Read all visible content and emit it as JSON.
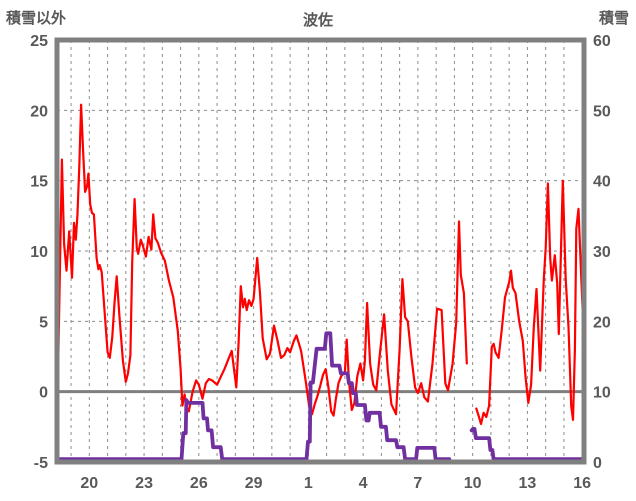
{
  "header": {
    "left_axis_title": "積雪以外",
    "chart_title": "波佐",
    "right_axis_title": "積雪"
  },
  "colors": {
    "temperature_line": "#FF0000",
    "snow_line": "#7030A0",
    "frame": "#808080",
    "grid": "#8C8C8C",
    "zero_line": "#7F7F7F",
    "text": "#595959",
    "background": "#FFFFFF"
  },
  "chart_data": {
    "type": "line",
    "title": "波佐",
    "y_axis_left": {
      "label": "積雪以外",
      "min": -5,
      "max": 25,
      "ticks": [
        25,
        20,
        15,
        10,
        5,
        0,
        -5
      ],
      "dashed_grid_values": [
        20,
        15,
        10,
        5
      ],
      "zero_line_value": 0
    },
    "y_axis_right": {
      "label": "積雪",
      "min": 0,
      "max": 60,
      "ticks": [
        60,
        50,
        40,
        30,
        20,
        10,
        0
      ]
    },
    "x_axis": {
      "domain": [
        -0.77,
        28.1
      ],
      "grid_day_first": 0,
      "grid_day_last": 28,
      "tick_days": [
        1,
        4,
        7,
        10,
        13,
        16,
        19,
        22,
        25,
        28
      ],
      "tick_labels": [
        "20",
        "23",
        "26",
        "29",
        "1",
        "4",
        "7",
        "10",
        "13",
        "16"
      ]
    },
    "grid": true,
    "legend": "none",
    "series": [
      {
        "name": "temperature-red",
        "axis": "left",
        "color": "#FF0000",
        "width": 2.2,
        "points": [
          [
            -0.77,
            2.0
          ],
          [
            -0.7,
            2.3
          ],
          [
            -0.5,
            16.5
          ],
          [
            -0.38,
            10.5
          ],
          [
            -0.25,
            8.6
          ],
          [
            -0.1,
            11.4
          ],
          [
            0.05,
            8.1
          ],
          [
            0.16,
            12.0
          ],
          [
            0.26,
            10.8
          ],
          [
            0.35,
            12.5
          ],
          [
            0.45,
            16.0
          ],
          [
            0.55,
            20.4
          ],
          [
            0.67,
            16.8
          ],
          [
            0.77,
            14.2
          ],
          [
            0.88,
            14.6
          ],
          [
            0.95,
            15.5
          ],
          [
            1.05,
            13.3
          ],
          [
            1.15,
            12.7
          ],
          [
            1.25,
            12.6
          ],
          [
            1.4,
            9.5
          ],
          [
            1.5,
            8.7
          ],
          [
            1.57,
            9.0
          ],
          [
            1.68,
            8.5
          ],
          [
            1.85,
            5.5
          ],
          [
            2.0,
            2.8
          ],
          [
            2.12,
            2.4
          ],
          [
            2.26,
            3.9
          ],
          [
            2.38,
            6.3
          ],
          [
            2.5,
            8.2
          ],
          [
            2.65,
            5.4
          ],
          [
            2.84,
            2.2
          ],
          [
            3.0,
            0.7
          ],
          [
            3.12,
            1.3
          ],
          [
            3.25,
            2.6
          ],
          [
            3.35,
            9.2
          ],
          [
            3.48,
            13.7
          ],
          [
            3.6,
            10.2
          ],
          [
            3.68,
            9.8
          ],
          [
            3.82,
            10.8
          ],
          [
            3.95,
            10.3
          ],
          [
            4.1,
            9.6
          ],
          [
            4.25,
            11.0
          ],
          [
            4.4,
            10.1
          ],
          [
            4.5,
            12.6
          ],
          [
            4.62,
            10.9
          ],
          [
            4.75,
            10.6
          ],
          [
            4.92,
            9.9
          ],
          [
            5.14,
            9.3
          ],
          [
            5.36,
            7.9
          ],
          [
            5.6,
            6.7
          ],
          [
            5.85,
            4.3
          ],
          [
            6.0,
            1.6
          ],
          [
            6.1,
            -1.0
          ],
          [
            6.22,
            -0.2
          ],
          [
            6.35,
            -1.2
          ],
          [
            6.45,
            -1.4
          ],
          [
            6.66,
            0.0
          ],
          [
            6.85,
            0.8
          ],
          [
            7.0,
            0.5
          ],
          [
            7.2,
            -0.5
          ],
          [
            7.38,
            0.6
          ],
          [
            7.55,
            0.9
          ],
          [
            7.72,
            0.8
          ],
          [
            8.0,
            0.5
          ],
          [
            8.4,
            1.6
          ],
          [
            8.8,
            2.9
          ],
          [
            9.05,
            0.3
          ],
          [
            9.18,
            3.5
          ],
          [
            9.3,
            7.5
          ],
          [
            9.42,
            6.0
          ],
          [
            9.52,
            6.6
          ],
          [
            9.62,
            5.8
          ],
          [
            9.75,
            6.5
          ],
          [
            9.88,
            6.1
          ],
          [
            10.0,
            6.6
          ],
          [
            10.2,
            9.5
          ],
          [
            10.35,
            7.0
          ],
          [
            10.5,
            3.8
          ],
          [
            10.72,
            2.3
          ],
          [
            10.9,
            2.7
          ],
          [
            11.12,
            4.7
          ],
          [
            11.3,
            3.7
          ],
          [
            11.5,
            2.4
          ],
          [
            11.68,
            2.6
          ],
          [
            11.85,
            3.1
          ],
          [
            12.0,
            2.8
          ],
          [
            12.2,
            3.6
          ],
          [
            12.35,
            4.0
          ],
          [
            12.6,
            2.9
          ],
          [
            12.85,
            0.8
          ],
          [
            13.05,
            -1.1
          ],
          [
            13.2,
            -1.6
          ],
          [
            13.35,
            -0.9
          ],
          [
            13.5,
            -0.3
          ],
          [
            13.65,
            0.4
          ],
          [
            13.8,
            1.2
          ],
          [
            13.95,
            1.6
          ],
          [
            14.1,
            0.3
          ],
          [
            14.25,
            -1.4
          ],
          [
            14.38,
            -1.7
          ],
          [
            14.5,
            -0.6
          ],
          [
            14.65,
            0.6
          ],
          [
            14.8,
            1.1
          ],
          [
            15.0,
            1.4
          ],
          [
            15.1,
            3.7
          ],
          [
            15.22,
            0.8
          ],
          [
            15.38,
            -1.3
          ],
          [
            15.52,
            -0.8
          ],
          [
            15.68,
            1.1
          ],
          [
            15.85,
            2.0
          ],
          [
            16.0,
            0.8
          ],
          [
            16.1,
            2.2
          ],
          [
            16.22,
            6.3
          ],
          [
            16.38,
            2.0
          ],
          [
            16.55,
            0.5
          ],
          [
            16.72,
            0.1
          ],
          [
            16.9,
            2.5
          ],
          [
            17.15,
            5.5
          ],
          [
            17.35,
            1.5
          ],
          [
            17.55,
            -0.9
          ],
          [
            17.8,
            -1.6
          ],
          [
            18.0,
            3.0
          ],
          [
            18.15,
            8.0
          ],
          [
            18.3,
            5.3
          ],
          [
            18.45,
            5.0
          ],
          [
            18.65,
            2.4
          ],
          [
            18.85,
            0.3
          ],
          [
            19.0,
            -0.1
          ],
          [
            19.18,
            0.6
          ],
          [
            19.35,
            -0.4
          ],
          [
            19.55,
            -0.7
          ],
          [
            19.8,
            2.0
          ],
          [
            20.05,
            5.9
          ],
          [
            20.3,
            5.8
          ],
          [
            20.5,
            0.6
          ],
          [
            20.65,
            0.1
          ],
          [
            20.9,
            2.0
          ],
          [
            21.1,
            4.9
          ],
          [
            21.25,
            12.1
          ],
          [
            21.35,
            8.3
          ],
          [
            21.52,
            7.0
          ],
          [
            21.68,
            2.0
          ],
          null,
          [
            22.2,
            -1.2
          ],
          [
            22.35,
            -1.8
          ],
          [
            22.46,
            -2.3
          ],
          [
            22.6,
            -1.5
          ],
          [
            22.75,
            -1.8
          ],
          [
            22.9,
            -1.0
          ],
          [
            23.05,
            3.2
          ],
          [
            23.15,
            3.4
          ],
          [
            23.25,
            2.8
          ],
          [
            23.42,
            2.4
          ],
          [
            23.6,
            4.5
          ],
          [
            23.77,
            6.7
          ],
          [
            24.0,
            7.8
          ],
          [
            24.1,
            8.6
          ],
          [
            24.2,
            7.4
          ],
          [
            24.35,
            7.0
          ],
          [
            24.55,
            5.0
          ],
          [
            24.75,
            3.6
          ],
          [
            24.9,
            1.0
          ],
          [
            25.05,
            -0.8
          ],
          [
            25.2,
            0.5
          ],
          [
            25.35,
            4.6
          ],
          [
            25.5,
            7.3
          ],
          [
            25.7,
            1.5
          ],
          [
            25.9,
            8.0
          ],
          [
            26.0,
            10.2
          ],
          [
            26.12,
            14.8
          ],
          [
            26.25,
            9.5
          ],
          [
            26.34,
            7.9
          ],
          [
            26.5,
            9.7
          ],
          [
            26.63,
            7.7
          ],
          [
            26.72,
            4.1
          ],
          [
            26.94,
            15.0
          ],
          [
            27.1,
            8.0
          ],
          [
            27.25,
            4.6
          ],
          [
            27.4,
            -1.0
          ],
          [
            27.5,
            -2.0
          ],
          [
            27.6,
            3.0
          ],
          [
            27.68,
            11.6
          ],
          [
            27.8,
            13.0
          ],
          [
            27.95,
            8.0
          ],
          [
            28.05,
            5.0
          ],
          [
            28.15,
            1.5
          ],
          [
            28.22,
            0.4
          ]
        ]
      },
      {
        "name": "snow-depth-purple",
        "axis": "right",
        "color": "#7030A0",
        "width": 3.8,
        "points": [
          [
            -0.77,
            0.4
          ],
          [
            6.05,
            0.4
          ],
          [
            6.15,
            4.1
          ],
          [
            6.28,
            4.1
          ],
          [
            6.32,
            8.8
          ],
          [
            6.4,
            8.4
          ],
          [
            7.2,
            8.4
          ],
          [
            7.26,
            6.2
          ],
          [
            7.45,
            6.2
          ],
          [
            7.5,
            4.5
          ],
          [
            7.7,
            4.5
          ],
          [
            7.78,
            2.1
          ],
          [
            8.2,
            2.1
          ],
          [
            8.28,
            0.4
          ],
          [
            12.9,
            0.4
          ],
          [
            12.98,
            2.9
          ],
          [
            13.08,
            2.9
          ],
          [
            13.12,
            11.3
          ],
          [
            13.25,
            11.3
          ],
          [
            13.32,
            13.0
          ],
          [
            13.45,
            16.1
          ],
          [
            13.9,
            16.1
          ],
          [
            13.98,
            18.3
          ],
          [
            14.2,
            18.3
          ],
          [
            14.3,
            13.7
          ],
          [
            14.7,
            13.7
          ],
          [
            14.78,
            12.6
          ],
          [
            15.15,
            12.6
          ],
          [
            15.22,
            11.2
          ],
          [
            15.38,
            11.2
          ],
          [
            15.44,
            9.8
          ],
          [
            15.6,
            9.8
          ],
          [
            15.66,
            8.1
          ],
          [
            16.1,
            8.1
          ],
          [
            16.18,
            5.9
          ],
          [
            16.3,
            5.9
          ],
          [
            16.36,
            7.0
          ],
          [
            16.9,
            7.0
          ],
          [
            16.98,
            5.0
          ],
          [
            17.25,
            5.0
          ],
          [
            17.32,
            3.1
          ],
          [
            17.8,
            3.1
          ],
          [
            17.88,
            2.1
          ],
          [
            18.22,
            2.1
          ],
          [
            18.3,
            0.4
          ],
          [
            18.9,
            0.4
          ],
          [
            18.97,
            2.0
          ],
          [
            19.9,
            2.0
          ],
          [
            19.97,
            0.4
          ],
          [
            20.72,
            0.4
          ],
          null,
          [
            21.95,
            4.5
          ],
          [
            22.02,
            4.7
          ],
          [
            22.1,
            4.7
          ],
          [
            22.18,
            3.4
          ],
          [
            22.9,
            3.4
          ],
          [
            22.97,
            1.7
          ],
          [
            23.08,
            1.7
          ],
          [
            23.15,
            0.4
          ],
          [
            28.25,
            0.4
          ]
        ]
      }
    ]
  }
}
